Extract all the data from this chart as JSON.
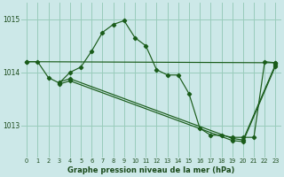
{
  "xlabel": "Graphe pression niveau de la mer (hPa)",
  "xlim": [
    -0.5,
    23.5
  ],
  "ylim": [
    1012.4,
    1015.3
  ],
  "yticks": [
    1013,
    1014,
    1015
  ],
  "xticks": [
    0,
    1,
    2,
    3,
    4,
    5,
    6,
    7,
    8,
    9,
    10,
    11,
    12,
    13,
    14,
    15,
    16,
    17,
    18,
    19,
    20,
    21,
    22,
    23
  ],
  "bg_color": "#cce8e8",
  "grid_color": "#99ccbb",
  "line_color": "#1a5c1a",
  "line1_x": [
    0,
    1,
    2,
    3,
    4,
    5,
    6,
    7,
    8,
    9,
    10,
    11,
    12,
    13,
    14,
    15,
    16,
    17,
    18,
    19,
    20,
    21,
    22,
    23
  ],
  "line1_y": [
    1014.2,
    1014.2,
    1013.9,
    1013.8,
    1014.0,
    1014.1,
    1014.4,
    1014.75,
    1014.9,
    1014.97,
    1014.65,
    1014.5,
    1014.05,
    1013.95,
    1013.95,
    1013.6,
    1012.95,
    1012.82,
    1012.82,
    1012.78,
    1012.78,
    1012.78,
    1014.2,
    1014.18
  ],
  "line2_x": [
    0,
    3,
    23
  ],
  "line2_y": [
    1014.2,
    1013.82,
    1014.18
  ],
  "line3_x": [
    0,
    3,
    4,
    19,
    20,
    23
  ],
  "line3_y": [
    1014.2,
    1013.82,
    1013.88,
    1012.78,
    1012.78,
    1014.18
  ],
  "line4_x": [
    3,
    4,
    19,
    20,
    23
  ],
  "line4_y": [
    1013.82,
    1013.88,
    1012.76,
    1012.72,
    1014.15
  ]
}
